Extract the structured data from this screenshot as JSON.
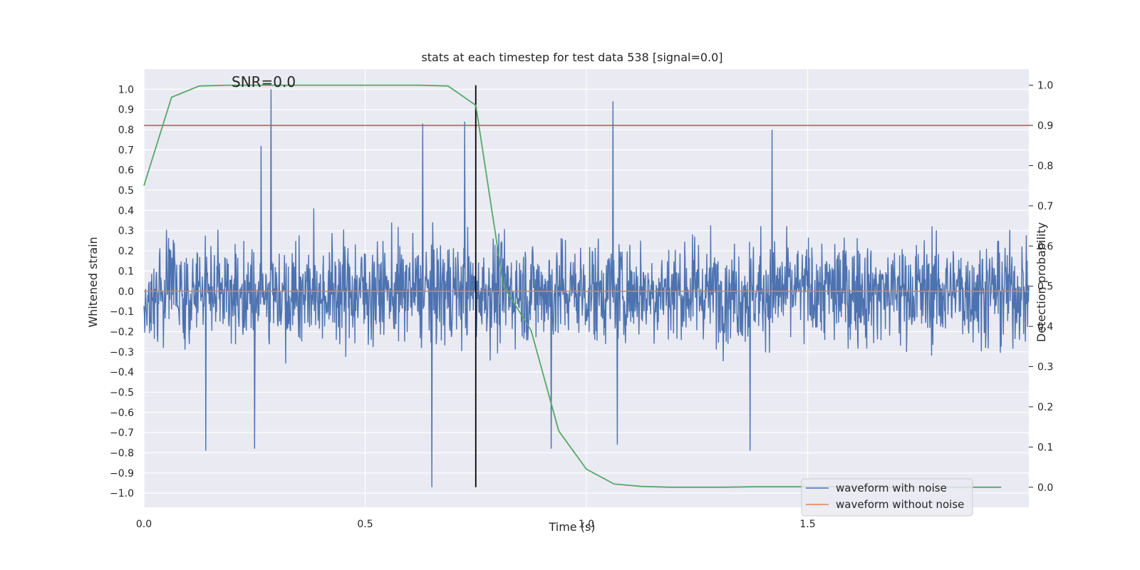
{
  "chart_data": {
    "type": "line",
    "title": "stats at each timestep for test data 538 [signal=0.0]",
    "xlabel": "Time (s)",
    "ylabel_left": "Whitened strain",
    "ylabel_right": "Detection probability",
    "xlim": [
      0.0,
      2.0
    ],
    "ylim_left": [
      -1.07,
      1.1
    ],
    "ylim_right": [
      -0.05,
      1.04
    ],
    "x_ticks": [
      "0.0",
      "0.5",
      "1.0",
      "1.5"
    ],
    "y_ticks_left": [
      "−1.0",
      "−0.9",
      "−0.8",
      "−0.7",
      "−0.6",
      "−0.5",
      "−0.4",
      "−0.3",
      "−0.2",
      "−0.1",
      "0.0",
      "0.1",
      "0.2",
      "0.3",
      "0.4",
      "0.5",
      "0.6",
      "0.7",
      "0.8",
      "0.9",
      "1.0"
    ],
    "y_ticks_right": [
      "0.0",
      "0.1",
      "0.2",
      "0.3",
      "0.4",
      "0.5",
      "0.6",
      "0.7",
      "0.8",
      "0.9",
      "1.0"
    ],
    "annotation": "SNR=0.0",
    "threshold_prob": 0.9,
    "marker_time": 0.75,
    "series": [
      {
        "name": "waveform with noise",
        "color": "#4c72b0",
        "axis": "left",
        "description": "white noise, amplitude normalised to max 1.0, sampled over 0–2 s"
      },
      {
        "name": "waveform without noise",
        "color": "#dd8452",
        "axis": "left",
        "x": [
          0.0,
          2.0
        ],
        "values": [
          0.0,
          0.0
        ]
      },
      {
        "name": "detection probability",
        "color": "#55a868",
        "axis": "right",
        "x": [
          0.0,
          0.0625,
          0.125,
          0.1875,
          0.25,
          0.3125,
          0.375,
          0.4375,
          0.5,
          0.5625,
          0.625,
          0.6875,
          0.75,
          0.8125,
          0.875,
          0.9375,
          1.0,
          1.0625,
          1.125,
          1.1875,
          1.25,
          1.3125,
          1.375,
          1.4375,
          1.5,
          1.5625,
          1.625,
          1.6875,
          1.75,
          1.8125,
          1.875,
          1.9375
        ],
        "values": [
          0.75,
          0.97,
          0.998,
          1.0,
          1.0,
          1.0,
          1.0,
          1.0,
          1.0,
          1.0,
          1.0,
          0.998,
          0.95,
          0.5,
          0.39,
          0.14,
          0.045,
          0.008,
          0.002,
          0.0,
          0.0,
          0.0,
          0.001,
          0.001,
          0.001,
          0.001,
          0.0,
          0.0,
          0.0,
          0.0,
          0.0,
          0.0
        ]
      }
    ],
    "noise_peaks": [
      {
        "x": 0.287,
        "y": 1.0
      },
      {
        "x": 0.265,
        "y": 0.72
      },
      {
        "x": 0.63,
        "y": 0.83
      },
      {
        "x": 0.725,
        "y": 0.84
      },
      {
        "x": 1.06,
        "y": 0.94
      },
      {
        "x": 1.42,
        "y": 0.8
      },
      {
        "x": 0.651,
        "y": -0.97
      },
      {
        "x": 0.14,
        "y": -0.79
      },
      {
        "x": 0.25,
        "y": -0.78
      },
      {
        "x": 1.37,
        "y": -0.79
      },
      {
        "x": 0.92,
        "y": -0.78
      },
      {
        "x": 1.07,
        "y": -0.76
      }
    ],
    "legend": {
      "placement": "lower-right",
      "entries": [
        "waveform with noise",
        "waveform without noise"
      ]
    },
    "colors": {
      "background": "#eaeaf2",
      "grid": "#ffffff",
      "threshold": "#c44e52",
      "marker": "#000000"
    }
  }
}
